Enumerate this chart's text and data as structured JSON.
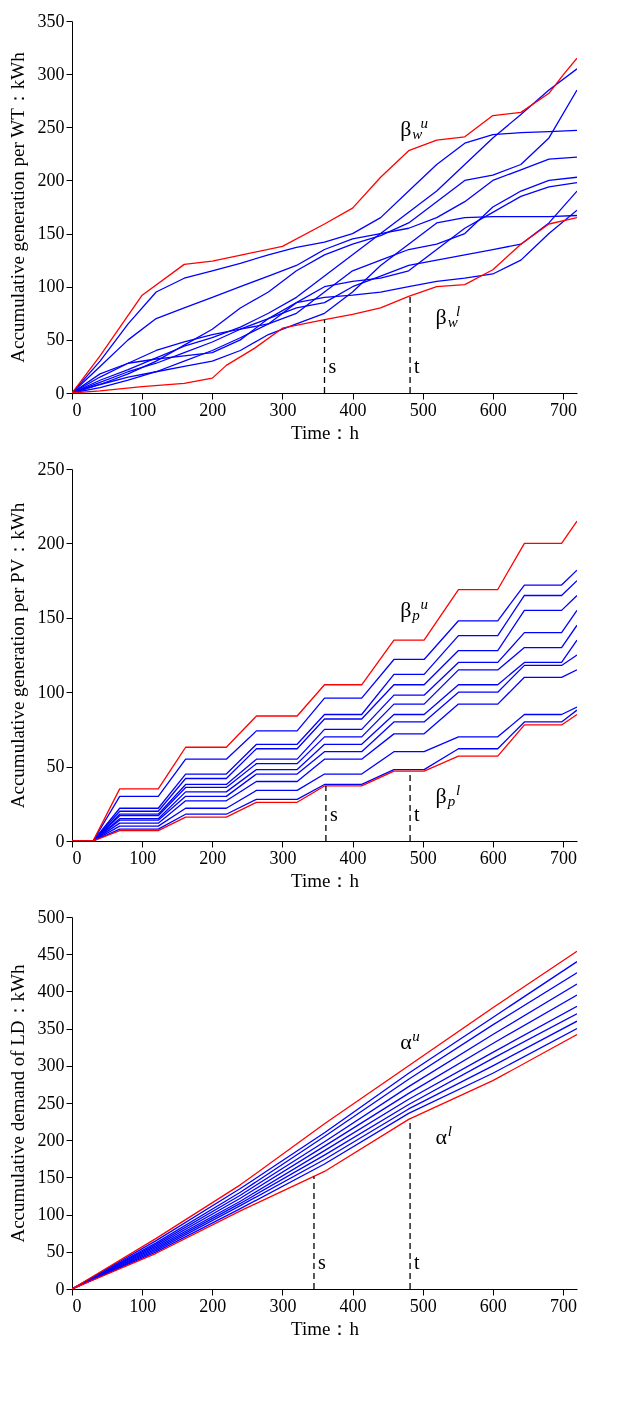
{
  "chart_data": [
    {
      "type": "line",
      "xlabel": "Time：h",
      "ylabel": "Accumulative generation per WT：kWh",
      "xlim": [
        0,
        720
      ],
      "ylim": [
        0,
        350
      ],
      "xticks": [
        0,
        100,
        200,
        300,
        400,
        500,
        600,
        700
      ],
      "yticks": [
        0,
        50,
        100,
        150,
        200,
        250,
        300,
        350
      ],
      "grid": false,
      "marker": "none",
      "line_style": "solid",
      "x": [
        0,
        40,
        80,
        120,
        160,
        200,
        240,
        280,
        320,
        360,
        400,
        440,
        480,
        520,
        560,
        600,
        640,
        680,
        720
      ],
      "series": [
        {
          "color": "#0000ff",
          "values": [
            0,
            12,
            22,
            33,
            44,
            52,
            62,
            75,
            90,
            110,
            130,
            150,
            170,
            190,
            215,
            240,
            262,
            285,
            305
          ]
        },
        {
          "color": "#0000ff",
          "values": [
            0,
            30,
            65,
            95,
            108,
            115,
            122,
            130,
            137,
            142,
            150,
            165,
            190,
            215,
            235,
            243,
            245,
            246,
            247
          ]
        },
        {
          "color": "#0000ff",
          "values": [
            0,
            25,
            50,
            70,
            80,
            90,
            100,
            110,
            120,
            135,
            145,
            150,
            155,
            165,
            180,
            200,
            210,
            220,
            222
          ]
        },
        {
          "color": "#0000ff",
          "values": [
            0,
            8,
            18,
            30,
            45,
            60,
            80,
            95,
            115,
            130,
            140,
            148,
            160,
            180,
            200,
            205,
            215,
            240,
            285
          ]
        },
        {
          "color": "#0000ff",
          "values": [
            0,
            15,
            28,
            40,
            48,
            55,
            60,
            65,
            75,
            95,
            115,
            125,
            135,
            140,
            150,
            175,
            190,
            200,
            203
          ]
        },
        {
          "color": "#0000ff",
          "values": [
            0,
            5,
            12,
            20,
            30,
            40,
            52,
            65,
            85,
            100,
            105,
            108,
            115,
            135,
            155,
            170,
            185,
            194,
            198
          ]
        },
        {
          "color": "#0000ff",
          "values": [
            0,
            18,
            28,
            32,
            35,
            38,
            50,
            70,
            85,
            90,
            92,
            95,
            100,
            105,
            108,
            112,
            125,
            150,
            172
          ]
        },
        {
          "color": "#0000ff",
          "values": [
            0,
            10,
            20,
            28,
            38,
            48,
            60,
            70,
            80,
            85,
            100,
            110,
            120,
            125,
            130,
            135,
            140,
            160,
            190
          ]
        },
        {
          "color": "#0000ff",
          "values": [
            0,
            8,
            15,
            20,
            25,
            30,
            40,
            55,
            65,
            75,
            95,
            120,
            140,
            160,
            165,
            166,
            166,
            166,
            167
          ]
        },
        {
          "color": "#ff0000",
          "x": [
            0,
            40,
            100,
            160,
            200,
            300,
            360,
            400,
            440,
            480,
            520,
            560,
            600,
            640,
            680,
            700,
            720
          ],
          "values": [
            0,
            35,
            92,
            121,
            124,
            138,
            159,
            174,
            203,
            228,
            238,
            241,
            261,
            264,
            282,
            299,
            315
          ]
        },
        {
          "color": "#ff0000",
          "x": [
            0,
            40,
            100,
            160,
            200,
            220,
            260,
            300,
            360,
            400,
            440,
            480,
            520,
            560,
            600,
            640,
            680,
            720
          ],
          "values": [
            0,
            2,
            6,
            9,
            14,
            26,
            42,
            61,
            69,
            74,
            80,
            91,
            100,
            102,
            116,
            140,
            159,
            165
          ]
        }
      ],
      "ref_lines": [
        {
          "axis": "x",
          "value": 360,
          "label": "s",
          "color": "#000000",
          "line_style": "dashed"
        },
        {
          "axis": "x",
          "value": 482,
          "label": "t",
          "color": "#000000",
          "line_style": "dashed"
        }
      ],
      "annotations": [
        "β$_{w}$$^{u}$",
        "β$_{w}$$^{l}$"
      ]
    },
    {
      "type": "line",
      "xlabel": "Time：h",
      "ylabel": "Accumulative generation per PV：kWh",
      "xlim": [
        0,
        720
      ],
      "ylim": [
        0,
        250
      ],
      "xticks": [
        0,
        100,
        200,
        300,
        400,
        500,
        600,
        700
      ],
      "yticks": [
        0,
        50,
        100,
        150,
        200,
        250
      ],
      "grid": false,
      "marker": "none",
      "line_style": "solid",
      "x": [
        0,
        30,
        68,
        123,
        162,
        220,
        263,
        321,
        360,
        413,
        459,
        502,
        551,
        607,
        645,
        698,
        720
      ],
      "series": [
        {
          "color": "#0000ff",
          "values": [
            0,
            0,
            30,
            30,
            55,
            55,
            74,
            74,
            96,
            96,
            122,
            122,
            148,
            148,
            172,
            172,
            182
          ]
        },
        {
          "color": "#0000ff",
          "values": [
            0,
            0,
            22,
            22,
            45,
            45,
            65,
            65,
            85,
            85,
            112,
            112,
            138,
            138,
            165,
            165,
            175
          ]
        },
        {
          "color": "#0000ff",
          "values": [
            0,
            0,
            20,
            20,
            42,
            42,
            62,
            62,
            82,
            82,
            105,
            105,
            128,
            128,
            155,
            155,
            165
          ]
        },
        {
          "color": "#0000ff",
          "values": [
            0,
            0,
            18,
            18,
            38,
            38,
            55,
            55,
            75,
            75,
            98,
            98,
            120,
            120,
            140,
            140,
            155
          ]
        },
        {
          "color": "#0000ff",
          "values": [
            0,
            0,
            17,
            17,
            36,
            36,
            52,
            52,
            70,
            70,
            92,
            92,
            115,
            115,
            130,
            130,
            145
          ]
        },
        {
          "color": "#0000ff",
          "values": [
            0,
            0,
            15,
            15,
            33,
            33,
            48,
            48,
            65,
            65,
            85,
            85,
            105,
            105,
            120,
            120,
            135
          ]
        },
        {
          "color": "#0000ff",
          "values": [
            0,
            0,
            14,
            14,
            30,
            30,
            45,
            45,
            60,
            60,
            80,
            80,
            100,
            100,
            118,
            118,
            125
          ]
        },
        {
          "color": "#0000ff",
          "values": [
            0,
            0,
            12,
            12,
            27,
            27,
            40,
            40,
            55,
            55,
            72,
            72,
            92,
            92,
            110,
            110,
            115
          ]
        },
        {
          "color": "#0000ff",
          "values": [
            0,
            0,
            10,
            10,
            22,
            22,
            34,
            34,
            45,
            45,
            60,
            60,
            70,
            70,
            85,
            85,
            90
          ]
        },
        {
          "color": "#0000ff",
          "values": [
            0,
            0,
            8,
            8,
            18,
            18,
            28,
            28,
            38,
            38,
            48,
            48,
            62,
            62,
            80,
            80,
            88
          ]
        },
        {
          "color": "#ff0000",
          "values": [
            0,
            0,
            35,
            35,
            63,
            63,
            84,
            84,
            105,
            105,
            135,
            135,
            169,
            169,
            200,
            200,
            215
          ]
        },
        {
          "color": "#ff0000",
          "values": [
            0,
            0,
            7,
            7,
            16,
            16,
            26,
            26,
            37,
            37,
            47,
            47,
            57,
            57,
            78,
            78,
            85
          ]
        }
      ],
      "ref_lines": [
        {
          "axis": "x",
          "value": 362,
          "label": "s",
          "color": "#000000",
          "line_style": "dashed"
        },
        {
          "axis": "x",
          "value": 482,
          "label": "t",
          "color": "#000000",
          "line_style": "dashed"
        }
      ],
      "annotations": [
        "β$_{p}$$^{u}$",
        "β$_{p}$$^{l}$"
      ]
    },
    {
      "type": "line",
      "xlabel": "Time：h",
      "ylabel": "Accumulative demand of LD：kWh",
      "xlim": [
        0,
        720
      ],
      "ylim": [
        0,
        500
      ],
      "xticks": [
        0,
        100,
        200,
        300,
        400,
        500,
        600,
        700
      ],
      "yticks": [
        0,
        50,
        100,
        150,
        200,
        250,
        300,
        350,
        400,
        450,
        500
      ],
      "grid": false,
      "marker": "none",
      "line_style": "solid",
      "x": [
        0,
        120,
        240,
        360,
        480,
        600,
        720
      ],
      "series": [
        {
          "color": "#0000ff",
          "values": [
            0,
            65,
            135,
            210,
            290,
            365,
            440
          ]
        },
        {
          "color": "#0000ff",
          "values": [
            0,
            62,
            130,
            205,
            282,
            355,
            425
          ]
        },
        {
          "color": "#0000ff",
          "values": [
            0,
            60,
            126,
            198,
            272,
            342,
            410
          ]
        },
        {
          "color": "#0000ff",
          "values": [
            0,
            58,
            122,
            192,
            263,
            330,
            395
          ]
        },
        {
          "color": "#0000ff",
          "values": [
            0,
            56,
            118,
            186,
            255,
            318,
            380
          ]
        },
        {
          "color": "#0000ff",
          "values": [
            0,
            54,
            115,
            180,
            248,
            310,
            370
          ]
        },
        {
          "color": "#0000ff",
          "values": [
            0,
            52,
            112,
            174,
            242,
            300,
            360
          ]
        },
        {
          "color": "#0000ff",
          "values": [
            0,
            50,
            108,
            168,
            236,
            290,
            350
          ]
        },
        {
          "color": "#ff0000",
          "values": [
            0,
            68,
            140,
            222,
            300,
            378,
            454
          ]
        },
        {
          "color": "#ff0000",
          "values": [
            0,
            48,
            105,
            158,
            228,
            280,
            342
          ]
        }
      ],
      "ref_lines": [
        {
          "axis": "x",
          "value": 345,
          "label": "s",
          "color": "#000000",
          "line_style": "dashed"
        },
        {
          "axis": "x",
          "value": 482,
          "label": "t",
          "color": "#000000",
          "line_style": "dashed"
        }
      ],
      "annotations": [
        "α$^{u}$",
        "α$^{l}$"
      ]
    }
  ]
}
